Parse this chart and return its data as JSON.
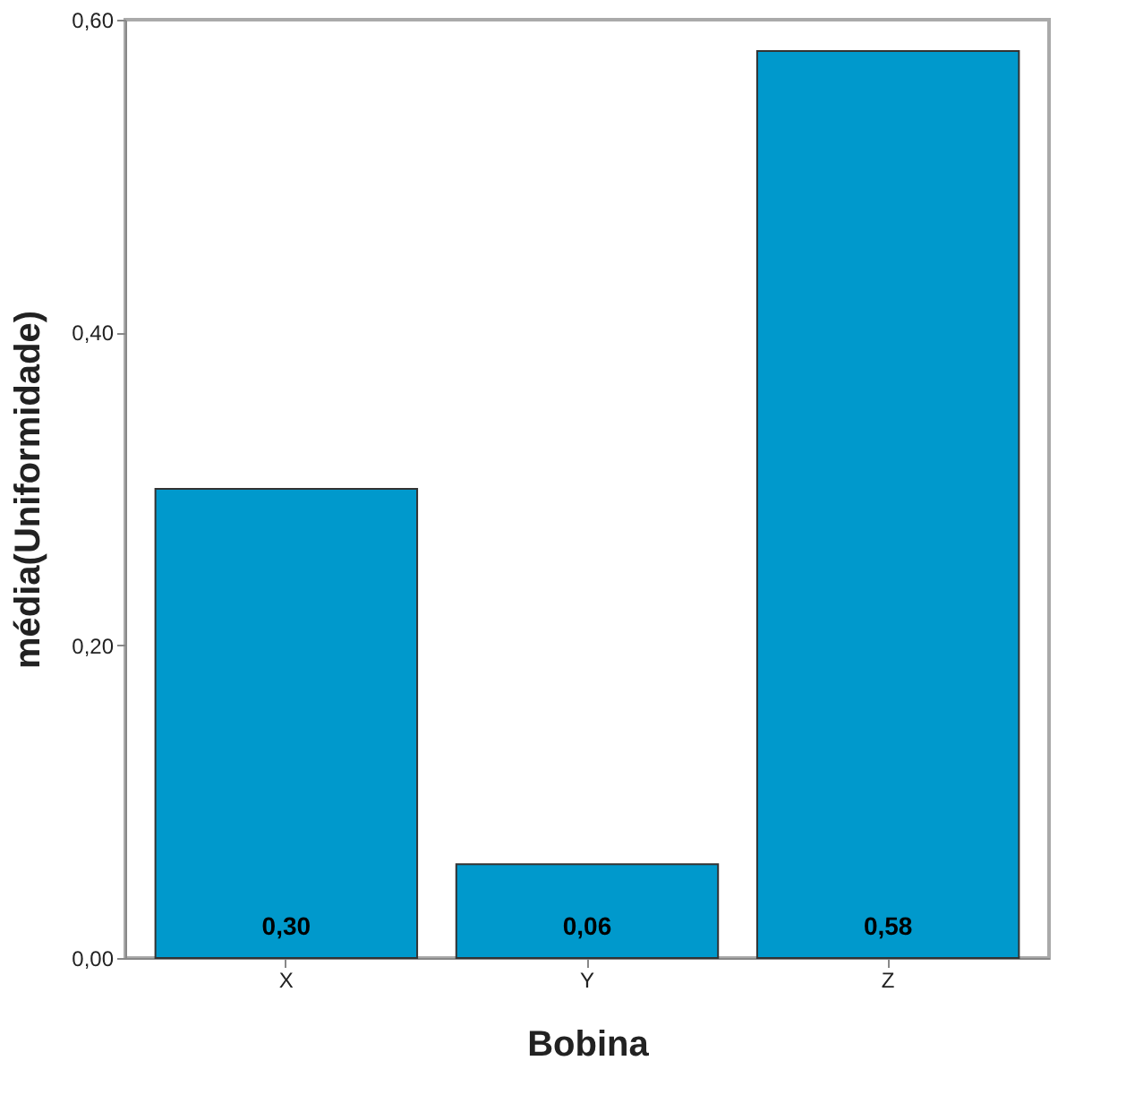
{
  "chart_data": {
    "type": "bar",
    "xlabel": "Bobina",
    "ylabel": "média(Uniformidade)",
    "categories": [
      "X",
      "Y",
      "Z"
    ],
    "values": [
      0.3,
      0.06,
      0.58
    ],
    "color": "#0099cc",
    "value_labels": [
      "0,30",
      "0,06",
      "0,58"
    ],
    "ylim": [
      0,
      0.6
    ],
    "yticks": [
      {
        "value": 0,
        "label": "0,00"
      },
      {
        "value": 0.2,
        "label": "0,20"
      },
      {
        "value": 0.4,
        "label": "0,40"
      },
      {
        "value": 0.6,
        "label": "0,60"
      }
    ],
    "grid": false
  }
}
